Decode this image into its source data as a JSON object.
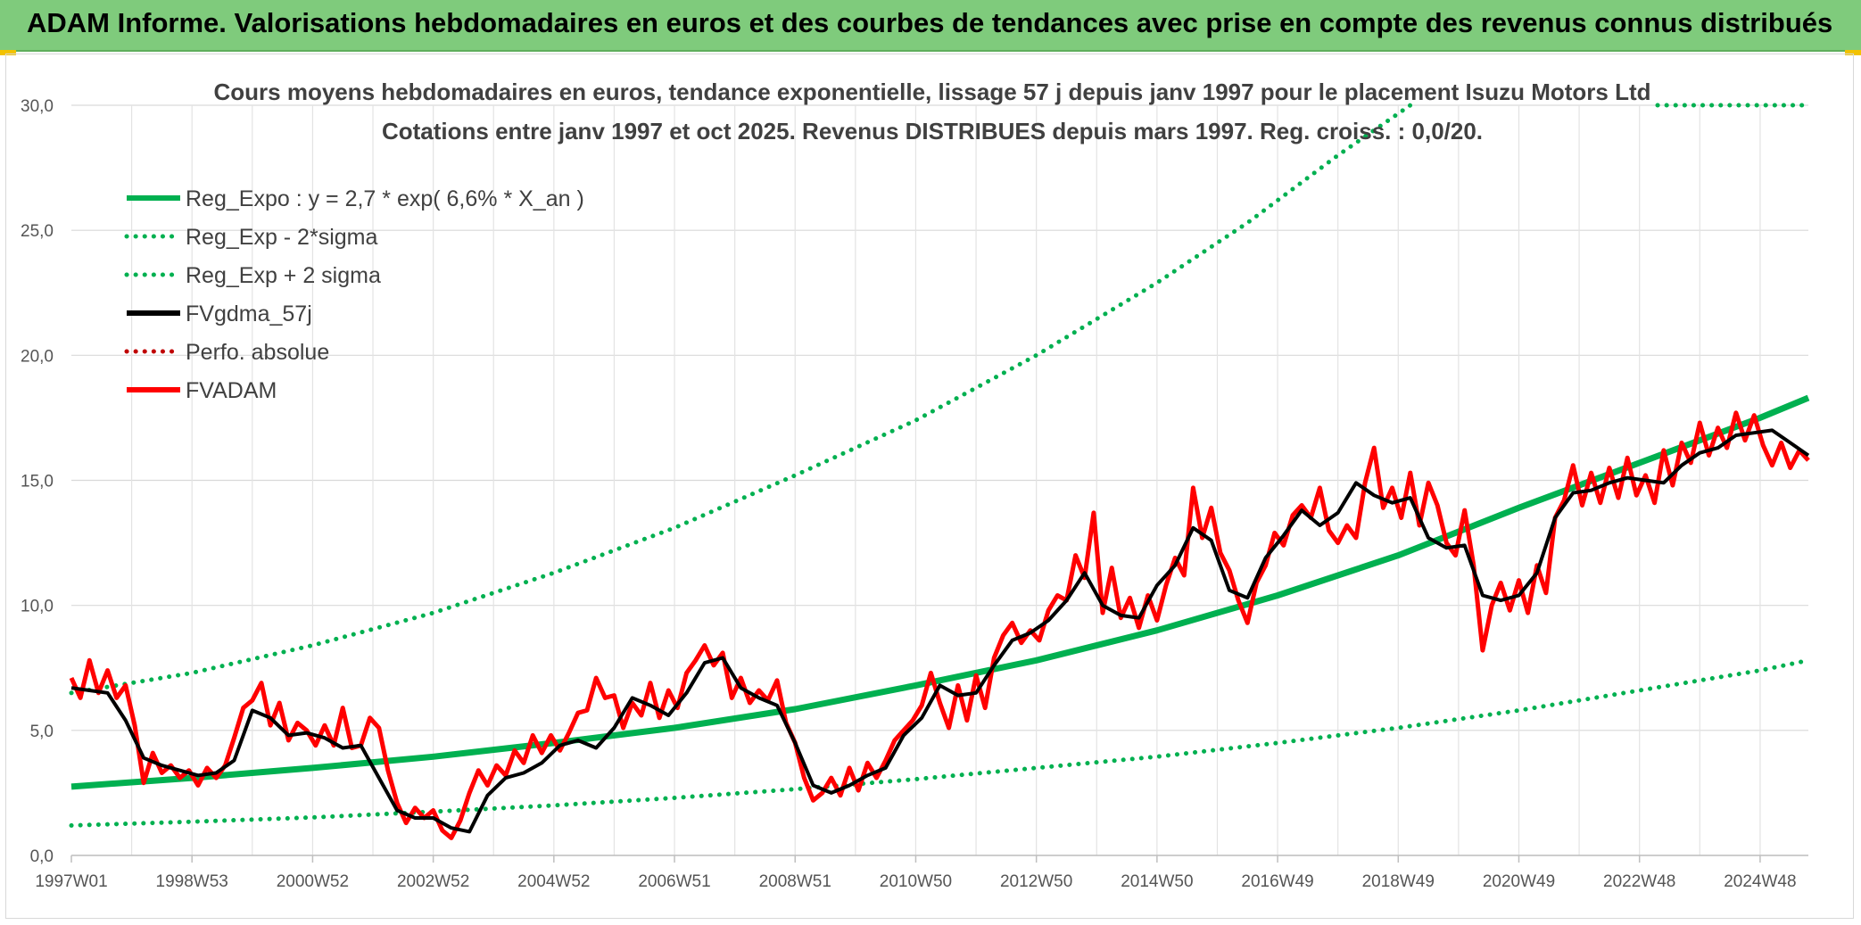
{
  "header": {
    "title": "ADAM Informe. Valorisations hebdomadaires en euros et des courbes de tendances avec prise en compte des revenus connus distribués"
  },
  "colors": {
    "banner": "#7fcb7c",
    "reg_expo": "#00b050",
    "fvgdma": "#000000",
    "fvadam": "#ff0000",
    "perfo": "#c00000"
  },
  "chart_data": {
    "type": "line",
    "title": "Cours moyens hebdomadaires en euros, tendance exponentielle, lissage 57 j depuis janv 1997 pour le placement Isuzu Motors Ltd",
    "subtitle": "Cotations entre janv 1997 et oct 2025. Revenus DISTRIBUES depuis mars 1997. Reg. croiss. : 0,0/20.",
    "xlabel": "",
    "ylabel": "",
    "ylim": [
      0,
      30
    ],
    "xlim": [
      1997.0,
      2025.8
    ],
    "y_ticks": [
      "0,0",
      "5,0",
      "10,0",
      "15,0",
      "20,0",
      "25,0",
      "30,0"
    ],
    "y_tick_values": [
      0,
      5,
      10,
      15,
      20,
      25,
      30
    ],
    "x_ticks": [
      "1997W01",
      "1998W53",
      "2000W52",
      "2002W52",
      "2004W52",
      "2006W51",
      "2008W51",
      "2010W50",
      "2012W50",
      "2014W50",
      "2016W49",
      "2018W49",
      "2020W49",
      "2022W48",
      "2024W48"
    ],
    "x_tick_values": [
      1997.0,
      1999.0,
      2001.0,
      2003.0,
      2005.0,
      2007.0,
      2009.0,
      2011.0,
      2013.0,
      2015.0,
      2017.0,
      2019.0,
      2021.0,
      2023.0,
      2025.0
    ],
    "grid": true,
    "legend_position": "top-left",
    "legend": [
      {
        "label": "Reg_Expo : y = 2,7 * exp( 6,6% *  X_an )",
        "style": "solid",
        "color": "#00b050"
      },
      {
        "label": "Reg_Exp - 2*sigma",
        "style": "dotted",
        "color": "#00b050"
      },
      {
        "label": "Reg_Exp + 2 sigma",
        "style": "dotted",
        "color": "#00b050"
      },
      {
        "label": "FVgdma_57j",
        "style": "solid",
        "color": "#000000"
      },
      {
        "label": "Perfo. absolue",
        "style": "dotted",
        "color": "#c00000"
      },
      {
        "label": "FVADAM",
        "style": "solid",
        "color": "#ff0000"
      }
    ],
    "series": [
      {
        "name": "Reg_Expo : y = 2,7 * exp( 6,6% *  X_an )",
        "x": [
          1997.0,
          1999.0,
          2001.0,
          2003.0,
          2005.0,
          2007.0,
          2009.0,
          2011.0,
          2013.0,
          2015.0,
          2017.0,
          2019.0,
          2021.0,
          2023.0,
          2025.0,
          2025.8
        ],
        "y": [
          2.75,
          3.1,
          3.5,
          3.95,
          4.5,
          5.1,
          5.85,
          6.8,
          7.8,
          9.0,
          10.4,
          12.0,
          13.9,
          15.7,
          17.5,
          18.3
        ]
      },
      {
        "name": "Reg_Exp - 2*sigma",
        "x": [
          1997.0,
          1999.0,
          2001.0,
          2003.0,
          2005.0,
          2007.0,
          2009.0,
          2011.0,
          2013.0,
          2015.0,
          2017.0,
          2019.0,
          2021.0,
          2023.0,
          2025.0,
          2025.8
        ],
        "y": [
          1.2,
          1.35,
          1.52,
          1.75,
          2.0,
          2.3,
          2.65,
          3.05,
          3.5,
          3.95,
          4.5,
          5.1,
          5.8,
          6.6,
          7.4,
          7.8
        ]
      },
      {
        "name": "Reg_Exp + 2 sigma",
        "x": [
          1997.0,
          1999.0,
          2001.0,
          2003.0,
          2005.0,
          2007.0,
          2009.0,
          2011.0,
          2013.0,
          2015.0,
          2016.5,
          2018.0,
          2019.2
        ],
        "y": [
          6.5,
          7.3,
          8.4,
          9.7,
          11.3,
          13.1,
          15.2,
          17.4,
          20.0,
          22.9,
          25.3,
          28.0,
          30.0
        ]
      },
      {
        "name": "Reg_Exp + 2 sigma (plafond)",
        "x": [
          2023.3,
          2025.8
        ],
        "y": [
          30.0,
          30.0
        ]
      },
      {
        "name": "FVgdma_57j",
        "x": [
          1997.0,
          1997.3,
          1997.6,
          1997.9,
          1998.2,
          1998.5,
          1998.8,
          1999.1,
          1999.4,
          1999.7,
          2000.0,
          2000.3,
          2000.6,
          2000.9,
          2001.2,
          2001.5,
          2001.8,
          2002.1,
          2002.4,
          2002.7,
          2003.0,
          2003.3,
          2003.6,
          2003.9,
          2004.2,
          2004.5,
          2004.8,
          2005.1,
          2005.4,
          2005.7,
          2006.0,
          2006.3,
          2006.6,
          2006.9,
          2007.2,
          2007.5,
          2007.8,
          2008.1,
          2008.4,
          2008.7,
          2009.0,
          2009.3,
          2009.6,
          2009.9,
          2010.2,
          2010.5,
          2010.8,
          2011.1,
          2011.4,
          2011.7,
          2012.0,
          2012.3,
          2012.6,
          2012.9,
          2013.2,
          2013.5,
          2013.8,
          2014.1,
          2014.4,
          2014.7,
          2015.0,
          2015.3,
          2015.6,
          2015.9,
          2016.2,
          2016.5,
          2016.8,
          2017.1,
          2017.4,
          2017.7,
          2018.0,
          2018.3,
          2018.6,
          2018.9,
          2019.2,
          2019.5,
          2019.8,
          2020.1,
          2020.4,
          2020.7,
          2021.0,
          2021.3,
          2021.6,
          2021.9,
          2022.2,
          2022.5,
          2022.8,
          2023.1,
          2023.4,
          2023.7,
          2024.0,
          2024.3,
          2024.6,
          2024.9,
          2025.2,
          2025.5,
          2025.8
        ],
        "y": [
          6.7,
          6.6,
          6.5,
          5.4,
          3.9,
          3.6,
          3.4,
          3.2,
          3.3,
          3.8,
          5.8,
          5.5,
          4.8,
          4.9,
          4.7,
          4.3,
          4.4,
          3.1,
          1.8,
          1.5,
          1.5,
          1.1,
          0.95,
          2.4,
          3.1,
          3.3,
          3.7,
          4.4,
          4.6,
          4.3,
          5.1,
          6.3,
          6.0,
          5.6,
          6.5,
          7.7,
          7.9,
          6.7,
          6.3,
          6.0,
          4.5,
          2.8,
          2.5,
          2.8,
          3.2,
          3.5,
          4.8,
          5.5,
          6.8,
          6.4,
          6.5,
          7.6,
          8.6,
          8.9,
          9.4,
          10.2,
          11.3,
          10.0,
          9.6,
          9.5,
          10.8,
          11.6,
          13.1,
          12.6,
          10.6,
          10.3,
          11.9,
          12.8,
          13.8,
          13.2,
          13.7,
          14.9,
          14.4,
          14.1,
          14.3,
          12.7,
          12.3,
          12.4,
          10.4,
          10.2,
          10.4,
          11.3,
          13.5,
          14.5,
          14.6,
          14.9,
          15.1,
          15.0,
          14.9,
          15.6,
          16.1,
          16.3,
          16.8,
          16.9,
          17.0,
          16.5,
          16.0
        ]
      },
      {
        "name": "FVADAM",
        "x": [
          1997.0,
          1997.15,
          1997.3,
          1997.45,
          1997.6,
          1997.75,
          1997.9,
          1998.05,
          1998.2,
          1998.35,
          1998.5,
          1998.65,
          1998.8,
          1998.95,
          1999.1,
          1999.25,
          1999.4,
          1999.55,
          1999.7,
          1999.85,
          2000.0,
          2000.15,
          2000.3,
          2000.45,
          2000.6,
          2000.75,
          2000.9,
          2001.05,
          2001.2,
          2001.35,
          2001.5,
          2001.65,
          2001.8,
          2001.95,
          2002.1,
          2002.25,
          2002.4,
          2002.55,
          2002.7,
          2002.85,
          2003.0,
          2003.15,
          2003.3,
          2003.45,
          2003.6,
          2003.75,
          2003.9,
          2004.05,
          2004.2,
          2004.35,
          2004.5,
          2004.65,
          2004.8,
          2004.95,
          2005.1,
          2005.25,
          2005.4,
          2005.55,
          2005.7,
          2005.85,
          2006.0,
          2006.15,
          2006.3,
          2006.45,
          2006.6,
          2006.75,
          2006.9,
          2007.05,
          2007.2,
          2007.35,
          2007.5,
          2007.65,
          2007.8,
          2007.95,
          2008.1,
          2008.25,
          2008.4,
          2008.55,
          2008.7,
          2008.85,
          2009.0,
          2009.15,
          2009.3,
          2009.45,
          2009.6,
          2009.75,
          2009.9,
          2010.05,
          2010.2,
          2010.35,
          2010.5,
          2010.65,
          2010.8,
          2010.95,
          2011.1,
          2011.25,
          2011.4,
          2011.55,
          2011.7,
          2011.85,
          2012.0,
          2012.15,
          2012.3,
          2012.45,
          2012.6,
          2012.75,
          2012.9,
          2013.05,
          2013.2,
          2013.35,
          2013.5,
          2013.65,
          2013.8,
          2013.95,
          2014.1,
          2014.25,
          2014.4,
          2014.55,
          2014.7,
          2014.85,
          2015.0,
          2015.15,
          2015.3,
          2015.45,
          2015.6,
          2015.75,
          2015.9,
          2016.05,
          2016.2,
          2016.35,
          2016.5,
          2016.65,
          2016.8,
          2016.95,
          2017.1,
          2017.25,
          2017.4,
          2017.55,
          2017.7,
          2017.85,
          2018.0,
          2018.15,
          2018.3,
          2018.45,
          2018.6,
          2018.75,
          2018.9,
          2019.05,
          2019.2,
          2019.35,
          2019.5,
          2019.65,
          2019.8,
          2019.95,
          2020.1,
          2020.25,
          2020.4,
          2020.55,
          2020.7,
          2020.85,
          2021.0,
          2021.15,
          2021.3,
          2021.45,
          2021.6,
          2021.75,
          2021.9,
          2022.05,
          2022.2,
          2022.35,
          2022.5,
          2022.65,
          2022.8,
          2022.95,
          2023.1,
          2023.25,
          2023.4,
          2023.55,
          2023.7,
          2023.85,
          2024.0,
          2024.15,
          2024.3,
          2024.45,
          2024.6,
          2024.75,
          2024.9,
          2025.05,
          2025.2,
          2025.35,
          2025.5,
          2025.65,
          2025.8
        ],
        "y": [
          7.1,
          6.3,
          7.8,
          6.5,
          7.4,
          6.3,
          6.8,
          5.2,
          2.9,
          4.1,
          3.3,
          3.6,
          3.1,
          3.4,
          2.8,
          3.5,
          3.1,
          3.6,
          4.7,
          5.9,
          6.2,
          6.9,
          5.2,
          6.1,
          4.6,
          5.3,
          5.0,
          4.4,
          5.2,
          4.4,
          5.9,
          4.3,
          4.4,
          5.5,
          5.1,
          3.4,
          2.1,
          1.3,
          1.9,
          1.5,
          1.8,
          1.0,
          0.7,
          1.4,
          2.5,
          3.4,
          2.8,
          3.6,
          3.2,
          4.2,
          3.7,
          4.8,
          4.1,
          4.8,
          4.2,
          4.9,
          5.7,
          5.8,
          7.1,
          6.3,
          6.4,
          5.1,
          6.1,
          5.6,
          6.9,
          5.5,
          6.6,
          5.9,
          7.3,
          7.8,
          8.4,
          7.6,
          8.1,
          6.3,
          7.1,
          6.1,
          6.6,
          6.2,
          7.0,
          5.3,
          4.5,
          3.1,
          2.2,
          2.5,
          3.1,
          2.4,
          3.5,
          2.6,
          3.7,
          3.1,
          3.8,
          4.6,
          5.0,
          5.4,
          6.0,
          7.3,
          6.1,
          5.1,
          6.8,
          5.4,
          7.2,
          5.9,
          7.9,
          8.8,
          9.3,
          8.5,
          9.0,
          8.6,
          9.8,
          10.4,
          10.2,
          12.0,
          11.1,
          13.7,
          9.7,
          11.5,
          9.5,
          10.3,
          9.1,
          10.4,
          9.4,
          10.8,
          11.9,
          11.2,
          14.7,
          12.7,
          13.9,
          12.1,
          11.4,
          10.2,
          9.3,
          10.9,
          11.6,
          12.9,
          12.4,
          13.6,
          14.0,
          13.5,
          14.7,
          13.0,
          12.5,
          13.2,
          12.7,
          14.9,
          16.3,
          13.9,
          14.7,
          13.5,
          15.3,
          13.2,
          14.9,
          14.0,
          12.5,
          12.0,
          13.8,
          11.6,
          8.2,
          10.0,
          10.9,
          9.8,
          11.0,
          9.7,
          11.6,
          10.5,
          13.5,
          14.2,
          15.6,
          14.0,
          15.3,
          14.1,
          15.5,
          14.3,
          15.9,
          14.4,
          15.2,
          14.1,
          16.2,
          14.8,
          16.5,
          15.7,
          17.3,
          16.0,
          17.1,
          16.3,
          17.7,
          16.6,
          17.6,
          16.4,
          15.6,
          16.5,
          15.5,
          16.2,
          15.8
        ]
      }
    ]
  }
}
